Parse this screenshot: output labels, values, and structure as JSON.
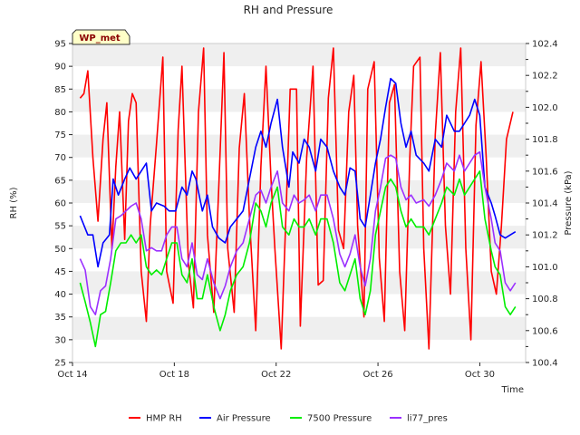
{
  "chart_data": {
    "type": "line",
    "title": "RH and Pressure",
    "badge": "WP_met",
    "xlabel": "Time",
    "ylabel_left": "RH (%)",
    "ylabel_right": "Pressure (kPa)",
    "x_tick_labels": [
      "Oct 14",
      "Oct 18",
      "Oct 22",
      "Oct 26",
      "Oct 30"
    ],
    "x_ticks_day": [
      14,
      18,
      22,
      26,
      30
    ],
    "xlim_day": [
      14,
      31.8
    ],
    "ylim_left": [
      25,
      95
    ],
    "ylim_right": [
      100.4,
      102.4
    ],
    "y_ticks_left": [
      25,
      30,
      35,
      40,
      45,
      50,
      55,
      60,
      65,
      70,
      75,
      80,
      85,
      90,
      95
    ],
    "y_ticks_right": [
      "100.4",
      "100.6",
      "100.8",
      "101.0",
      "101.2",
      "101.4",
      "101.6",
      "101.8",
      "102.0",
      "102.2",
      "102.4"
    ],
    "grid": "horizontal bands",
    "legend_position": "bottom",
    "series": [
      {
        "name": "HMP RH",
        "axis": "left",
        "color": "#ff0000",
        "x": [
          14.3,
          14.45,
          14.6,
          14.8,
          15.0,
          15.2,
          15.35,
          15.55,
          15.7,
          15.85,
          16.05,
          16.2,
          16.35,
          16.5,
          16.7,
          16.9,
          17.05,
          17.3,
          17.55,
          17.7,
          17.95,
          18.15,
          18.3,
          18.55,
          18.75,
          18.95,
          19.15,
          19.3,
          19.55,
          19.75,
          19.95,
          20.1,
          20.35,
          20.55,
          20.75,
          20.95,
          21.2,
          21.4,
          21.6,
          21.8,
          21.95,
          22.2,
          22.4,
          22.55,
          22.8,
          22.95,
          23.2,
          23.45,
          23.65,
          23.85,
          24.05,
          24.25,
          24.45,
          24.65,
          24.85,
          25.05,
          25.2,
          25.45,
          25.6,
          25.85,
          26.05,
          26.25,
          26.45,
          26.65,
          26.85,
          27.05,
          27.25,
          27.4,
          27.65,
          27.8,
          28.0,
          28.25,
          28.45,
          28.65,
          28.85,
          29.05,
          29.25,
          29.45,
          29.65,
          29.85,
          30.05,
          30.25,
          30.45,
          30.65,
          30.85,
          31.05,
          31.3
        ],
        "values": [
          83,
          84,
          89,
          70,
          56,
          74,
          82,
          50,
          68,
          80,
          52,
          78,
          84,
          82,
          45,
          34,
          55,
          73,
          92,
          45,
          38,
          76,
          90,
          47,
          37,
          80,
          94,
          53,
          36,
          64,
          93,
          50,
          36,
          72,
          84,
          57,
          32,
          68,
          90,
          65,
          50,
          28,
          60,
          85,
          85,
          33,
          70,
          90,
          42,
          43,
          83,
          94,
          54,
          50,
          80,
          88,
          55,
          35,
          85,
          91,
          48,
          34,
          82,
          86,
          45,
          32,
          70,
          90,
          92,
          50,
          28,
          75,
          93,
          55,
          40,
          80,
          94,
          50,
          30,
          77,
          91,
          70,
          45,
          40,
          55,
          74,
          80
        ]
      },
      {
        "name": "Air Pressure",
        "axis": "right",
        "color": "#0000ff",
        "x": [
          14.3,
          14.6,
          14.8,
          15.0,
          15.2,
          15.45,
          15.6,
          15.8,
          16.05,
          16.25,
          16.5,
          16.7,
          16.9,
          17.1,
          17.3,
          17.6,
          17.8,
          18.05,
          18.3,
          18.5,
          18.7,
          18.85,
          19.1,
          19.3,
          19.5,
          19.75,
          20.0,
          20.2,
          20.45,
          20.7,
          20.95,
          21.2,
          21.4,
          21.6,
          21.8,
          22.05,
          22.25,
          22.5,
          22.65,
          22.9,
          23.1,
          23.3,
          23.55,
          23.75,
          24.0,
          24.25,
          24.5,
          24.7,
          24.9,
          25.1,
          25.3,
          25.5,
          25.7,
          25.9,
          26.1,
          26.3,
          26.5,
          26.7,
          26.9,
          27.1,
          27.3,
          27.5,
          27.8,
          28.0,
          28.25,
          28.5,
          28.7,
          29.0,
          29.2,
          29.4,
          29.6,
          29.8,
          30.0,
          30.2,
          30.45,
          30.6,
          30.8,
          31.0,
          31.2,
          31.4
        ],
        "values": [
          101.32,
          101.2,
          101.2,
          101.0,
          101.15,
          101.2,
          101.55,
          101.45,
          101.55,
          101.62,
          101.55,
          101.6,
          101.65,
          101.35,
          101.4,
          101.38,
          101.35,
          101.35,
          101.5,
          101.45,
          101.6,
          101.55,
          101.35,
          101.45,
          101.25,
          101.18,
          101.15,
          101.25,
          101.3,
          101.35,
          101.55,
          101.75,
          101.85,
          101.75,
          101.9,
          102.05,
          101.75,
          101.5,
          101.72,
          101.65,
          101.8,
          101.75,
          101.6,
          101.8,
          101.75,
          101.6,
          101.5,
          101.45,
          101.62,
          101.6,
          101.3,
          101.25,
          101.45,
          101.65,
          101.8,
          102.0,
          102.18,
          102.15,
          101.9,
          101.75,
          101.85,
          101.7,
          101.65,
          101.6,
          101.8,
          101.75,
          101.95,
          101.85,
          101.85,
          101.9,
          101.95,
          102.05,
          101.95,
          101.5,
          101.4,
          101.32,
          101.2,
          101.18,
          101.2,
          101.22
        ]
      },
      {
        "name": "7500 Pressure",
        "axis": "right",
        "color": "#00ee00",
        "x": [
          14.3,
          14.5,
          14.7,
          14.9,
          15.1,
          15.3,
          15.5,
          15.7,
          15.9,
          16.1,
          16.3,
          16.5,
          16.7,
          16.9,
          17.1,
          17.3,
          17.5,
          17.7,
          17.9,
          18.1,
          18.3,
          18.5,
          18.7,
          18.9,
          19.1,
          19.3,
          19.55,
          19.8,
          20.0,
          20.2,
          20.45,
          20.7,
          20.95,
          21.2,
          21.4,
          21.6,
          21.8,
          22.05,
          22.25,
          22.5,
          22.7,
          22.9,
          23.1,
          23.3,
          23.55,
          23.75,
          24.0,
          24.25,
          24.5,
          24.7,
          24.9,
          25.1,
          25.3,
          25.5,
          25.7,
          25.9,
          26.1,
          26.3,
          26.5,
          26.7,
          26.9,
          27.1,
          27.3,
          27.5,
          27.8,
          28.0,
          28.25,
          28.5,
          28.7,
          29.0,
          29.2,
          29.4,
          29.6,
          29.8,
          30.0,
          30.2,
          30.45,
          30.6,
          30.8,
          31.0,
          31.2,
          31.4
        ],
        "values": [
          100.9,
          100.78,
          100.65,
          100.5,
          100.7,
          100.72,
          100.9,
          101.1,
          101.15,
          101.15,
          101.2,
          101.15,
          101.2,
          101.0,
          100.95,
          100.98,
          100.95,
          101.05,
          101.15,
          101.15,
          100.95,
          100.9,
          101.05,
          100.8,
          100.8,
          100.95,
          100.75,
          100.6,
          100.7,
          100.85,
          100.95,
          101.0,
          101.15,
          101.4,
          101.35,
          101.25,
          101.4,
          101.5,
          101.25,
          101.2,
          101.3,
          101.25,
          101.25,
          101.3,
          101.2,
          101.3,
          101.3,
          101.15,
          100.9,
          100.85,
          100.95,
          101.05,
          100.8,
          100.7,
          100.85,
          101.2,
          101.35,
          101.5,
          101.55,
          101.5,
          101.35,
          101.25,
          101.3,
          101.25,
          101.25,
          101.2,
          101.3,
          101.4,
          101.5,
          101.45,
          101.55,
          101.45,
          101.5,
          101.55,
          101.6,
          101.3,
          101.1,
          101.0,
          100.95,
          100.75,
          100.7,
          100.75
        ]
      },
      {
        "name": "li77_pres",
        "axis": "right",
        "color": "#9b30ff",
        "x": [
          14.3,
          14.5,
          14.7,
          14.9,
          15.1,
          15.3,
          15.5,
          15.7,
          15.9,
          16.1,
          16.3,
          16.5,
          16.7,
          16.9,
          17.1,
          17.3,
          17.5,
          17.7,
          17.9,
          18.1,
          18.3,
          18.5,
          18.7,
          18.9,
          19.1,
          19.3,
          19.55,
          19.8,
          20.0,
          20.2,
          20.45,
          20.7,
          20.95,
          21.2,
          21.4,
          21.6,
          21.8,
          22.05,
          22.25,
          22.5,
          22.7,
          22.9,
          23.1,
          23.3,
          23.55,
          23.75,
          24.0,
          24.25,
          24.5,
          24.7,
          24.9,
          25.1,
          25.3,
          25.5,
          25.7,
          25.9,
          26.1,
          26.3,
          26.5,
          26.7,
          26.9,
          27.1,
          27.3,
          27.5,
          27.8,
          28.0,
          28.25,
          28.5,
          28.7,
          29.0,
          29.2,
          29.4,
          29.6,
          29.8,
          30.0,
          30.2,
          30.45,
          30.6,
          30.8,
          31.0,
          31.2,
          31.4
        ],
        "values": [
          101.05,
          100.98,
          100.75,
          100.7,
          100.85,
          100.88,
          101.05,
          101.3,
          101.32,
          101.35,
          101.38,
          101.4,
          101.3,
          101.1,
          101.12,
          101.1,
          101.1,
          101.2,
          101.25,
          101.25,
          101.05,
          101.0,
          101.15,
          100.95,
          100.92,
          101.05,
          100.9,
          100.8,
          100.88,
          101.0,
          101.1,
          101.15,
          101.3,
          101.45,
          101.48,
          101.4,
          101.5,
          101.6,
          101.4,
          101.35,
          101.45,
          101.4,
          101.42,
          101.45,
          101.35,
          101.45,
          101.45,
          101.3,
          101.08,
          101.0,
          101.08,
          101.2,
          101.0,
          100.88,
          101.05,
          101.35,
          101.5,
          101.68,
          101.7,
          101.68,
          101.5,
          101.42,
          101.45,
          101.4,
          101.42,
          101.38,
          101.45,
          101.55,
          101.65,
          101.6,
          101.7,
          101.6,
          101.65,
          101.7,
          101.72,
          101.5,
          101.3,
          101.15,
          101.1,
          100.9,
          100.85,
          100.9
        ]
      }
    ]
  }
}
